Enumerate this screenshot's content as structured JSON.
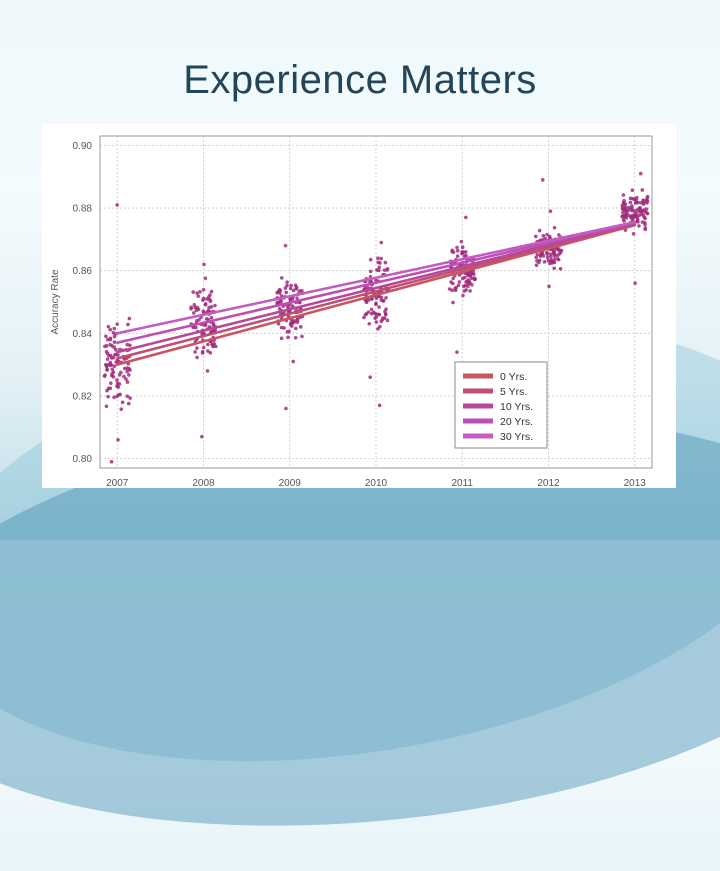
{
  "slide": {
    "title": "Experience Matters"
  },
  "chart_data": {
    "type": "scatter",
    "title": "",
    "xlabel": "",
    "ylabel": "Accuracy Rate",
    "x_ticks": [
      "2007",
      "2008",
      "2009",
      "2010",
      "2011",
      "2012",
      "2013"
    ],
    "y_ticks": [
      "0.80",
      "0.82",
      "0.84",
      "0.86",
      "0.88",
      "0.90"
    ],
    "xlim": [
      2006.8,
      2013.2
    ],
    "ylim": [
      0.797,
      0.903
    ],
    "grid": true,
    "legend_position": "bottom-right",
    "point_color": "#a02a7a",
    "series": [
      {
        "name": "0 Yrs.",
        "color": "#c9555f",
        "start": [
          2007,
          0.83
        ],
        "end": [
          2013,
          0.8745
        ]
      },
      {
        "name": "5 Yrs.",
        "color": "#c04f78",
        "start": [
          2007,
          0.832
        ],
        "end": [
          2013,
          0.8748
        ]
      },
      {
        "name": "10 Yrs.",
        "color": "#b8479a",
        "start": [
          2007,
          0.834
        ],
        "end": [
          2013,
          0.875
        ]
      },
      {
        "name": "20 Yrs.",
        "color": "#bd4fb3",
        "start": [
          2007,
          0.837
        ],
        "end": [
          2013,
          0.8753
        ]
      },
      {
        "name": "30 Yrs.",
        "color": "#c35cc4",
        "start": [
          2007,
          0.84
        ],
        "end": [
          2013,
          0.8755
        ]
      }
    ],
    "point_clusters": [
      {
        "x": 2007,
        "center": 0.832,
        "spread": 0.013,
        "outliers": [
          0.881,
          0.799,
          0.806
        ]
      },
      {
        "x": 2008,
        "center": 0.844,
        "spread": 0.011,
        "outliers": [
          0.862,
          0.807,
          0.828
        ]
      },
      {
        "x": 2009,
        "center": 0.849,
        "spread": 0.009,
        "outliers": [
          0.868,
          0.816,
          0.831
        ]
      },
      {
        "x": 2010,
        "center": 0.853,
        "spread": 0.011,
        "outliers": [
          0.826,
          0.817,
          0.869
        ]
      },
      {
        "x": 2011,
        "center": 0.86,
        "spread": 0.009,
        "outliers": [
          0.877,
          0.834
        ]
      },
      {
        "x": 2012,
        "center": 0.867,
        "spread": 0.006,
        "outliers": [
          0.889,
          0.879,
          0.855
        ]
      },
      {
        "x": 2013,
        "center": 0.879,
        "spread": 0.006,
        "outliers": [
          0.891,
          0.856
        ]
      }
    ]
  }
}
